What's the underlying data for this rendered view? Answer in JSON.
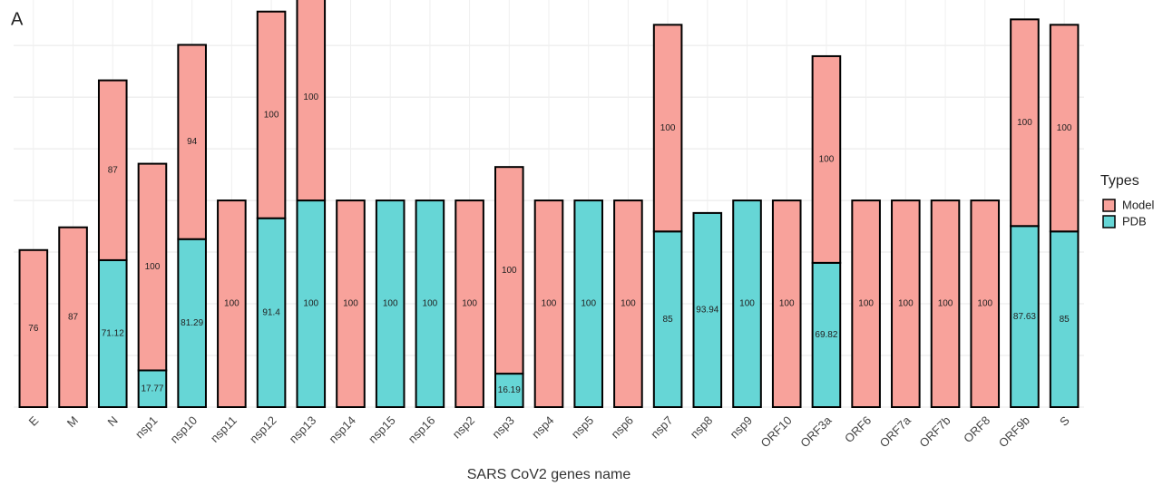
{
  "chart_data": {
    "type": "stacked_bar",
    "panel_label": "A",
    "x_label": "SARS CoV2 genes name",
    "legend_title": "Types",
    "legend_position": "right",
    "categories": [
      "E",
      "M",
      "N",
      "nsp1",
      "nsp10",
      "nsp11",
      "nsp12",
      "nsp13",
      "nsp14",
      "nsp15",
      "nsp16",
      "nsp2",
      "nsp3",
      "nsp4",
      "nsp5",
      "nsp6",
      "nsp7",
      "nsp8",
      "nsp9",
      "ORF10",
      "ORF3a",
      "ORF6",
      "ORF7a",
      "ORF7b",
      "ORF8",
      "ORF9b",
      "S"
    ],
    "series": [
      {
        "name": "PDB",
        "color": "#66d6d6",
        "values": [
          null,
          null,
          71.12,
          17.77,
          81.29,
          null,
          91.4,
          100,
          null,
          100,
          100,
          null,
          16.19,
          null,
          100,
          null,
          85,
          93.94,
          100,
          null,
          69.82,
          null,
          null,
          null,
          null,
          87.63,
          85
        ]
      },
      {
        "name": "Model",
        "color": "#f8a29b",
        "values": [
          76,
          87,
          87,
          100,
          94,
          100,
          100,
          100,
          100,
          null,
          null,
          100,
          100,
          100,
          null,
          100,
          100,
          null,
          null,
          100,
          100,
          100,
          100,
          100,
          100,
          100,
          100
        ]
      }
    ],
    "legend_order": [
      1,
      0
    ],
    "ylim": [
      0,
      197
    ],
    "yticks": [
      0,
      25,
      50,
      75,
      100,
      125,
      150,
      175
    ],
    "grid": true
  }
}
